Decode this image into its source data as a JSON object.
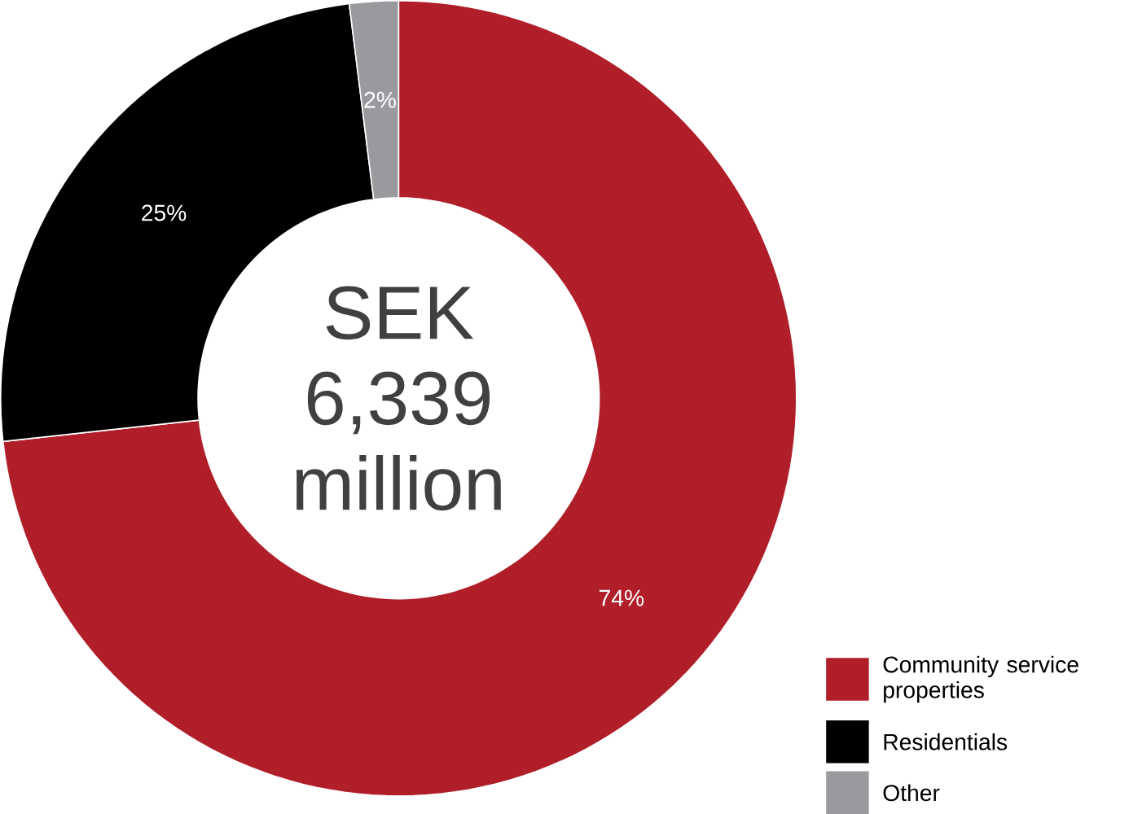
{
  "chart_data": {
    "type": "donut",
    "categories": [
      "Community service properties",
      "Residentials",
      "Other"
    ],
    "values": [
      74,
      25,
      2
    ],
    "colors": [
      "#b01f29",
      "#000000",
      "#999a9e"
    ],
    "value_labels": [
      "74%",
      "25%",
      "2%"
    ],
    "legend": "bottom right",
    "annotations": [
      "SEK 6,339 million"
    ]
  }
}
